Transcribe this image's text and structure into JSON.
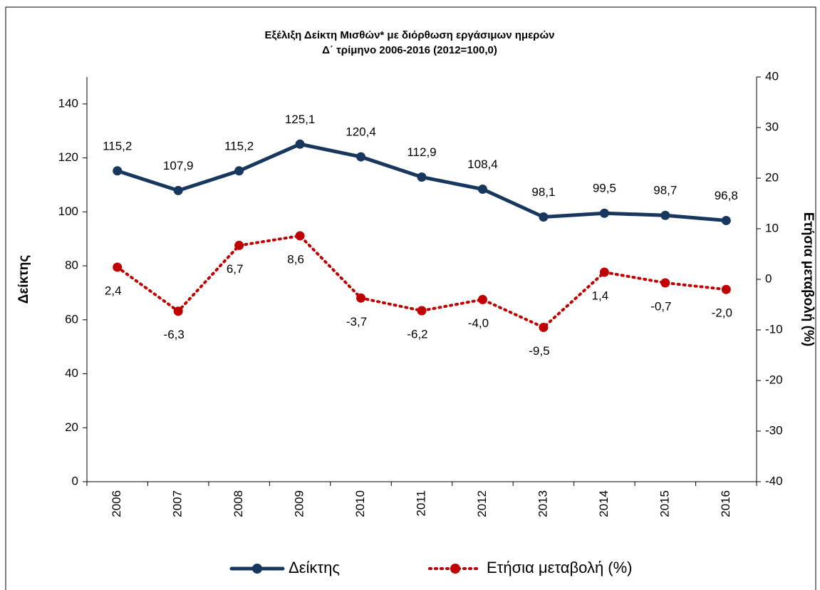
{
  "chart_data": {
    "type": "line",
    "title": "Εξέλιξη Δείκτη Μισθών* με διόρθωση εργάσιμων ημερών",
    "subtitle": "Δ΄ τρίμηνο 2006-2016 (2012=100,0)",
    "ylabel": "Δείκτης",
    "y2label": "Ετήσια μεταβολή (%)",
    "categories": [
      "2006",
      "2007",
      "2008",
      "2009",
      "2010",
      "2011",
      "2012",
      "2013",
      "2014",
      "2015",
      "2016"
    ],
    "series": [
      {
        "name": "Δείκτης",
        "color": "#17375e",
        "values": [
          115.2,
          107.9,
          115.2,
          125.1,
          120.4,
          112.9,
          108.4,
          98.1,
          99.5,
          98.7,
          96.8
        ],
        "value_labels": [
          "115,2",
          "107,9",
          "115,2",
          "125,1",
          "120,4",
          "112,9",
          "108,4",
          "98,1",
          "99,5",
          "98,7",
          "96,8"
        ]
      },
      {
        "name": "Ετήσια μεταβολή (%)",
        "color": "#c00000",
        "axis": "y2",
        "dash": true,
        "values": [
          2.4,
          -6.3,
          6.7,
          8.6,
          -3.7,
          -6.2,
          -4.0,
          -9.5,
          1.4,
          -0.7,
          -2.0
        ],
        "value_labels": [
          "2,4",
          "-6,3",
          "6,7",
          "8,6",
          "-3,7",
          "-6,2",
          "-4,0",
          "-9,5",
          "1,4",
          "-0,7",
          "-2,0"
        ]
      }
    ],
    "ylim": [
      0,
      150
    ],
    "yticks": [
      0,
      20,
      40,
      60,
      80,
      100,
      120,
      140
    ],
    "y2lim": [
      -40,
      40
    ],
    "y2ticks": [
      -40,
      -30,
      -20,
      -10,
      0,
      10,
      20,
      30,
      40
    ],
    "legend": "bottom"
  }
}
